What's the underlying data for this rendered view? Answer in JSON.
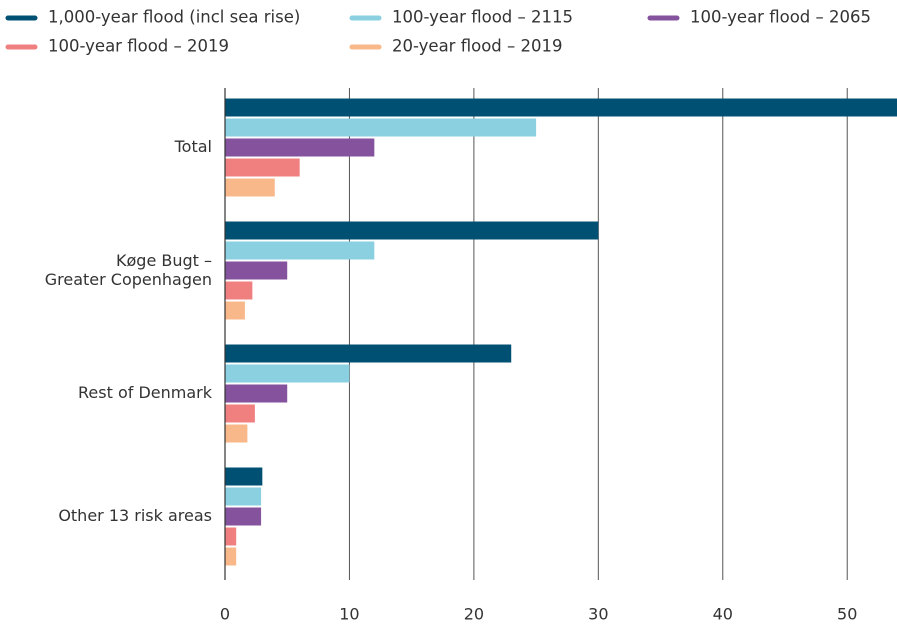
{
  "chart_data": {
    "type": "hbar",
    "categories": [
      "Total",
      "Køge Bugt –\nGreater Copenhagen",
      "Rest of Denmark",
      "Other 13 risk areas"
    ],
    "series": [
      {
        "name": "1,000-year flood (incl sea rise)",
        "color": "#005073",
        "values": [
          54,
          30,
          23,
          3
        ]
      },
      {
        "name": "100-year flood – 2115",
        "color": "#8ad0e0",
        "values": [
          25,
          12,
          10,
          2.9
        ]
      },
      {
        "name": "100-year flood – 2065",
        "color": "#85529e",
        "values": [
          12,
          5,
          5,
          2.9
        ]
      },
      {
        "name": "100-year flood – 2019",
        "color": "#f08080",
        "values": [
          6,
          2.2,
          2.4,
          0.9
        ]
      },
      {
        "name": "20-year flood – 2019",
        "color": "#f9b88a",
        "values": [
          4,
          1.6,
          1.8,
          0.9
        ]
      }
    ],
    "xlim": [
      0,
      54
    ],
    "xticks": [
      0,
      10,
      20,
      30,
      40,
      50
    ],
    "grid": true,
    "legend": "top"
  }
}
